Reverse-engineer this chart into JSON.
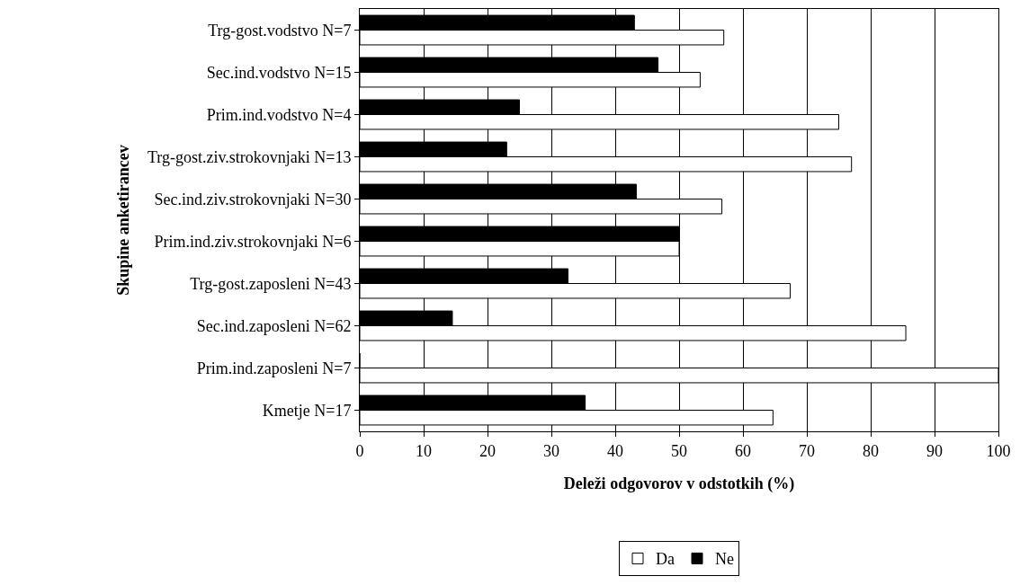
{
  "chart_data": {
    "type": "bar",
    "orientation": "horizontal",
    "xlabel": "Deleži odgovorov v odstotkih (%)",
    "ylabel": "Skupine anketirancev",
    "categories": [
      "Trg-gost.vodstvo N=7",
      "Sec.ind.vodstvo N=15",
      "Prim.ind.vodstvo N=4",
      "Trg-gost.ziv.strokovnjaki N=13",
      "Sec.ind.ziv.strokovnjaki N=30",
      "Prim.ind.ziv.strokovnjaki N=6",
      "Trg-gost.zaposleni N=43",
      "Sec.ind.zaposleni N=62",
      "Prim.ind.zaposleni N=7",
      "Kmetje N=17"
    ],
    "series": [
      {
        "name": "Ne",
        "color": "#000000",
        "values": [
          43,
          46.7,
          25,
          23,
          43.3,
          50,
          32.6,
          14.5,
          0,
          35.3
        ]
      },
      {
        "name": "Da",
        "color": "#ffffff",
        "values": [
          57,
          53.3,
          75,
          77,
          56.7,
          50,
          67.4,
          85.5,
          100,
          64.7
        ]
      }
    ],
    "xlim": [
      0,
      100
    ],
    "xticks": [
      0,
      10,
      20,
      30,
      40,
      50,
      60,
      70,
      80,
      90,
      100
    ],
    "grid": "x",
    "legend": "bottom"
  }
}
